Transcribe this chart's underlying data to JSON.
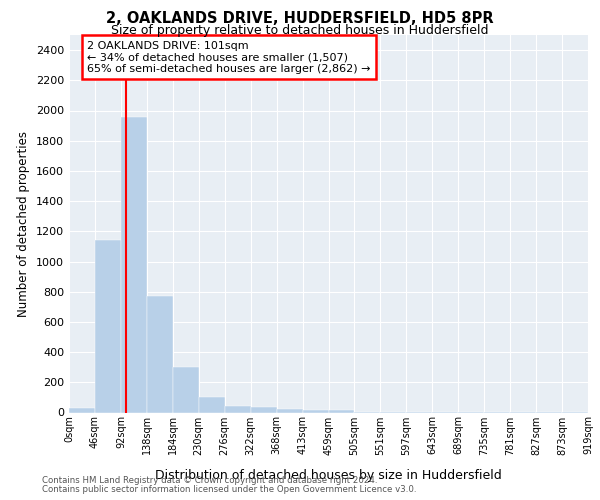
{
  "title1": "2, OAKLANDS DRIVE, HUDDERSFIELD, HD5 8PR",
  "title2": "Size of property relative to detached houses in Huddersfield",
  "xlabel": "Distribution of detached houses by size in Huddersfield",
  "ylabel": "Number of detached properties",
  "bar_values": [
    30,
    1140,
    1960,
    770,
    300,
    100,
    45,
    35,
    20,
    15,
    15,
    5,
    3,
    2,
    2,
    1,
    1,
    1,
    1,
    1
  ],
  "bar_color": "#b8d0e8",
  "tick_labels": [
    "0sqm",
    "46sqm",
    "92sqm",
    "138sqm",
    "184sqm",
    "230sqm",
    "276sqm",
    "322sqm",
    "368sqm",
    "413sqm",
    "459sqm",
    "505sqm",
    "551sqm",
    "597sqm",
    "643sqm",
    "689sqm",
    "735sqm",
    "781sqm",
    "827sqm",
    "873sqm",
    "919sqm"
  ],
  "ylim": [
    0,
    2500
  ],
  "yticks": [
    0,
    200,
    400,
    600,
    800,
    1000,
    1200,
    1400,
    1600,
    1800,
    2000,
    2200,
    2400
  ],
  "annotation_line1": "2 OAKLANDS DRIVE: 101sqm",
  "annotation_line2": "← 34% of detached houses are smaller (1,507)",
  "annotation_line3": "65% of semi-detached houses are larger (2,862) →",
  "footnote1": "Contains HM Land Registry data © Crown copyright and database right 2024.",
  "footnote2": "Contains public sector information licensed under the Open Government Licence v3.0.",
  "bg_color": "#ffffff",
  "plot_bg_color": "#e8eef4",
  "grid_color": "#ffffff"
}
